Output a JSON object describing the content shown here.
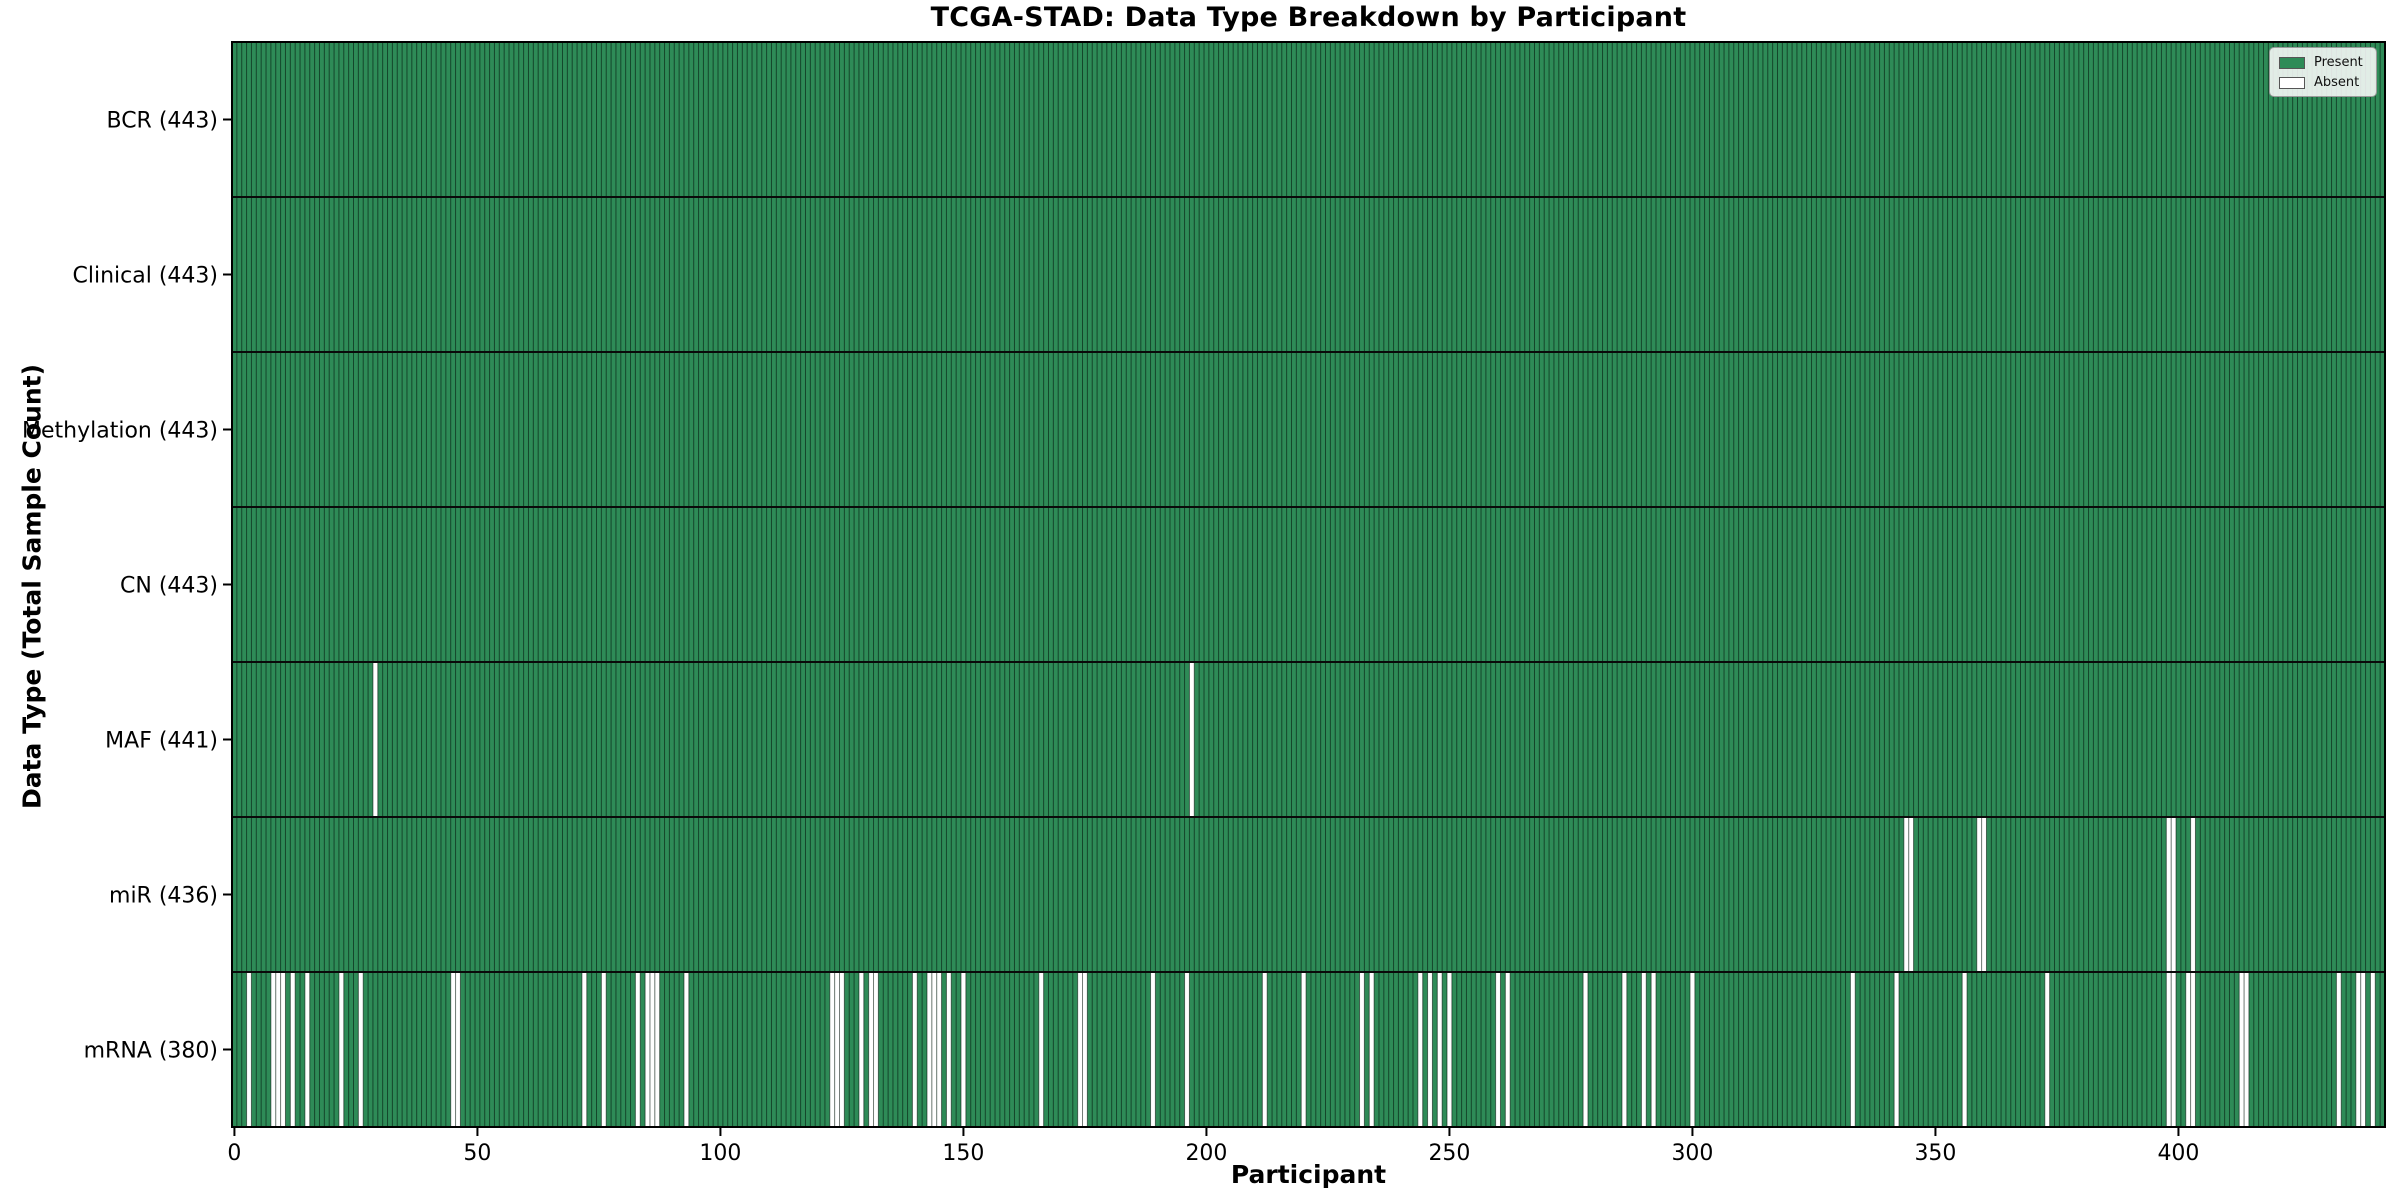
{
  "title": "TCGA-STAD: Data Type Breakdown by Participant",
  "chart_data": {
    "type": "heatmap",
    "title": "TCGA-STAD: Data Type Breakdown by Participant",
    "xlabel": "Participant",
    "ylabel": "Data Type (Total Sample Count)",
    "x_ticks": [
      0,
      50,
      100,
      150,
      200,
      250,
      300,
      350,
      400
    ],
    "n_participants": 443,
    "xlim": [
      -0.5,
      442.5
    ],
    "grid": false,
    "legend": {
      "position": "upper right",
      "entries": [
        {
          "label": "Present",
          "color": "#2e8b57"
        },
        {
          "label": "Absent",
          "color": "#ffffff"
        }
      ]
    },
    "colors": {
      "present": "#2e8b57",
      "absent": "#ffffff",
      "bar_edge": "rgba(0,15,8,0.55)",
      "row_divider": "#0a0a0a",
      "spine": "#000000",
      "tick": "#000000",
      "text": "#000000"
    },
    "rows": [
      {
        "label": "BCR (443)",
        "data_type": "BCR",
        "total": 443,
        "absent_count": 0,
        "absent_participants": []
      },
      {
        "label": "Clinical (443)",
        "data_type": "Clinical",
        "total": 443,
        "absent_count": 0,
        "absent_participants": []
      },
      {
        "label": "Methylation (443)",
        "data_type": "Methylation",
        "total": 443,
        "absent_count": 0,
        "absent_participants": []
      },
      {
        "label": "CN (443)",
        "data_type": "CN",
        "total": 443,
        "absent_count": 0,
        "absent_participants": []
      },
      {
        "label": "MAF (441)",
        "data_type": "MAF",
        "total": 441,
        "absent_count": 2,
        "absent_participants": [
          29,
          197
        ]
      },
      {
        "label": "miR (436)",
        "data_type": "miR",
        "total": 436,
        "absent_count": 7,
        "absent_participants": [
          344,
          345,
          359,
          360,
          398,
          399,
          403
        ]
      },
      {
        "label": "mRNA (380)",
        "data_type": "mRNA",
        "total": 380,
        "absent_count": 63,
        "absent_participants": [
          3,
          8,
          9,
          10,
          12,
          15,
          22,
          26,
          45,
          46,
          72,
          76,
          83,
          85,
          86,
          87,
          93,
          123,
          124,
          125,
          129,
          131,
          132,
          140,
          143,
          144,
          145,
          147,
          150,
          166,
          174,
          175,
          189,
          196,
          212,
          220,
          232,
          234,
          244,
          246,
          248,
          250,
          260,
          262,
          278,
          286,
          290,
          292,
          300,
          333,
          342,
          356,
          373,
          398,
          399,
          402,
          403,
          413,
          414,
          433,
          437,
          438,
          440
        ]
      }
    ]
  }
}
